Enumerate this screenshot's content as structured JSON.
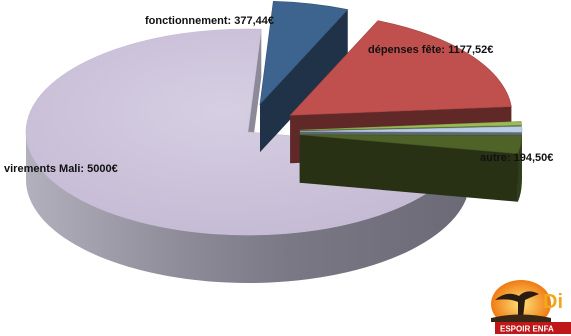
{
  "chart_data": {
    "type": "pie",
    "style": "3d-exploded",
    "title": "",
    "slices": [
      {
        "label": "fonctionnement: 377,44€",
        "value": 377.44,
        "color": "#3d638f",
        "exploded": true
      },
      {
        "label": "dépenses fête: 1177,52€",
        "value": 1177.52,
        "color": "#c0504d",
        "exploded": true
      },
      {
        "label": "",
        "value": 40,
        "color": "#9bbb59",
        "exploded": true
      },
      {
        "label": "",
        "value": 60,
        "color": "#b9cde5",
        "exploded": true
      },
      {
        "label": "autre: 194,50€",
        "value": 194.5,
        "color": "#4f6228",
        "exploded": true
      },
      {
        "label": "virements Mali: 5000€",
        "value": 5000,
        "color": "#ccc1da",
        "exploded": false
      }
    ]
  },
  "logo": {
    "icon": "espoir-enfance-tree-logo-icon",
    "text": "ESPOIR ENFA",
    "letter": "Di"
  }
}
